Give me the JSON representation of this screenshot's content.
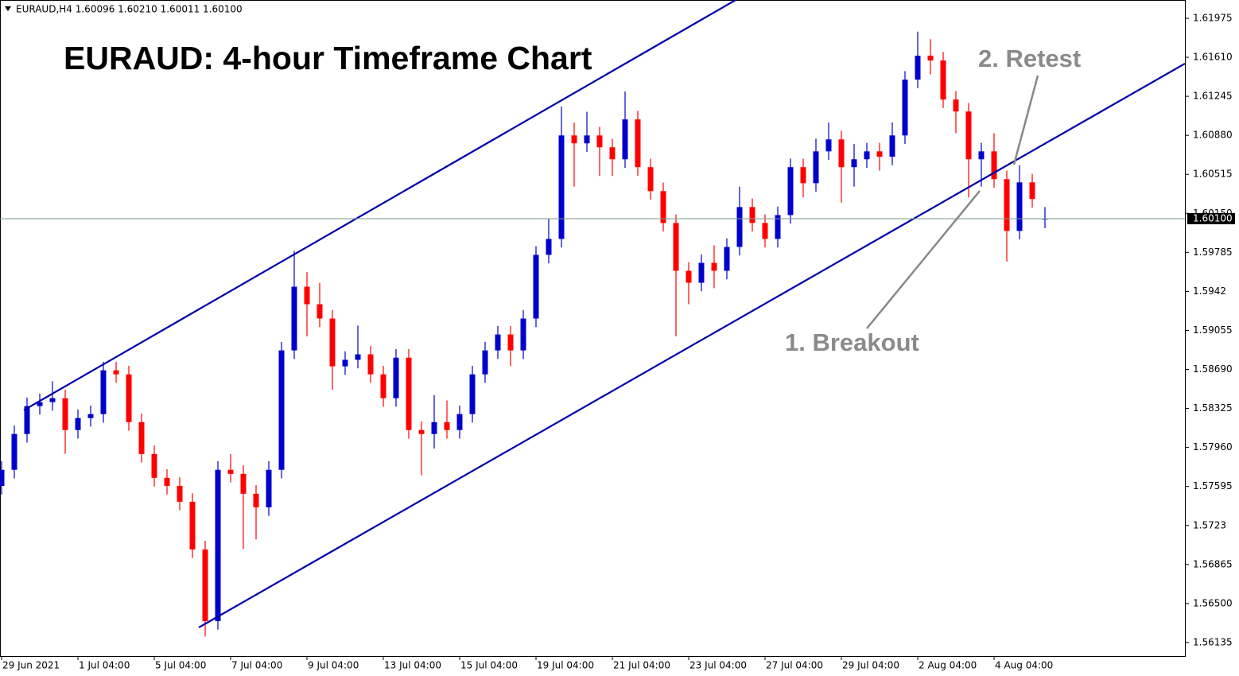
{
  "chart_data": {
    "type": "candlestick",
    "header": "EURAUD,H4  1.60096 1.60210 1.60011 1.60100",
    "title": "EURAUD: 4-hour Timeframe Chart",
    "annotations": [
      "1. Breakout",
      "2. Retest"
    ],
    "up_color": "#0000cc",
    "down_color": "#ff0000",
    "open": [
      1.576,
      1.57751,
      1.58086,
      1.58347,
      1.58384,
      1.58421,
      1.58123,
      1.58235,
      1.58272,
      1.58682,
      1.58644,
      1.58197,
      1.57899,
      1.57676,
      1.57601,
      1.57452,
      1.57006,
      1.56335,
      1.57751,
      1.57713,
      1.57527,
      1.574,
      1.57751,
      1.58868,
      1.59464,
      1.593,
      1.59166,
      1.58719,
      1.5878,
      1.58831,
      1.58644,
      1.58421,
      1.588,
      1.58123,
      1.58086,
      1.58197,
      1.58123,
      1.58272,
      1.58644,
      1.58868,
      1.59017,
      1.58868,
      1.59166,
      1.59762,
      1.59911,
      1.60879,
      1.60805,
      1.60879,
      1.60768,
      1.60656,
      1.61029,
      1.60582,
      1.60358,
      1.6006,
      1.59613,
      1.59501,
      1.59687,
      1.59613,
      1.59836,
      1.60209,
      1.6006,
      1.59911,
      1.60134,
      1.60582,
      1.60432,
      1.6073,
      1.60842,
      1.60582,
      1.60656,
      1.6073,
      1.6068,
      1.60879,
      1.61401,
      1.61625,
      1.6158,
      1.61215,
      1.61103,
      1.60656,
      1.6073,
      1.6047,
      1.59986,
      1.6044,
      1.60096
    ],
    "high": [
      1.57831,
      1.58166,
      1.58427,
      1.58464,
      1.5858,
      1.58501,
      1.58315,
      1.58352,
      1.58762,
      1.58762,
      1.58724,
      1.58277,
      1.57979,
      1.57756,
      1.57681,
      1.57532,
      1.57086,
      1.57831,
      1.579,
      1.57793,
      1.57607,
      1.57831,
      1.58948,
      1.598,
      1.596,
      1.595,
      1.59246,
      1.5886,
      1.591,
      1.58911,
      1.58724,
      1.5888,
      1.5888,
      1.58203,
      1.5845,
      1.584,
      1.58352,
      1.58724,
      1.58948,
      1.59097,
      1.59097,
      1.59246,
      1.59842,
      1.601,
      1.6115,
      1.61,
      1.611,
      1.60959,
      1.60848,
      1.6129,
      1.61109,
      1.60662,
      1.60438,
      1.6014,
      1.59693,
      1.59767,
      1.5985,
      1.59916,
      1.604,
      1.60289,
      1.6014,
      1.60214,
      1.60662,
      1.60662,
      1.6085,
      1.61,
      1.60922,
      1.608,
      1.6081,
      1.6081,
      1.61,
      1.61481,
      1.6185,
      1.6178,
      1.6166,
      1.61295,
      1.61183,
      1.6081,
      1.609,
      1.6055,
      1.606,
      1.6052,
      1.6021
    ],
    "low": [
      1.5752,
      1.57671,
      1.58006,
      1.58267,
      1.58304,
      1.579,
      1.58043,
      1.58155,
      1.58192,
      1.58564,
      1.58117,
      1.57819,
      1.57596,
      1.57521,
      1.57372,
      1.56926,
      1.5619,
      1.56255,
      1.57633,
      1.5701,
      1.571,
      1.5732,
      1.57671,
      1.58788,
      1.59,
      1.59086,
      1.585,
      1.58639,
      1.587,
      1.58564,
      1.58341,
      1.58341,
      1.58043,
      1.577,
      1.5795,
      1.58043,
      1.58043,
      1.58192,
      1.58564,
      1.58788,
      1.5872,
      1.58788,
      1.59086,
      1.59682,
      1.59831,
      1.604,
      1.60725,
      1.605,
      1.605,
      1.60576,
      1.60502,
      1.60278,
      1.5998,
      1.59,
      1.593,
      1.59421,
      1.5945,
      1.59533,
      1.59756,
      1.5998,
      1.59831,
      1.59831,
      1.60054,
      1.603,
      1.60352,
      1.6065,
      1.6025,
      1.604,
      1.60576,
      1.6055,
      1.606,
      1.60799,
      1.61321,
      1.6145,
      1.61135,
      1.609,
      1.603,
      1.604,
      1.6039,
      1.597,
      1.59906,
      1.60204,
      1.60011
    ],
    "close": [
      1.57751,
      1.58086,
      1.58347,
      1.58384,
      1.58421,
      1.58123,
      1.58235,
      1.58272,
      1.58682,
      1.58644,
      1.58197,
      1.57899,
      1.57676,
      1.57601,
      1.57452,
      1.57006,
      1.56335,
      1.57751,
      1.57713,
      1.57527,
      1.574,
      1.57751,
      1.58868,
      1.59464,
      1.593,
      1.59166,
      1.58719,
      1.5878,
      1.58831,
      1.58644,
      1.58421,
      1.588,
      1.58123,
      1.58086,
      1.58197,
      1.58123,
      1.58272,
      1.58644,
      1.58868,
      1.59017,
      1.58868,
      1.59166,
      1.59762,
      1.59911,
      1.60879,
      1.60805,
      1.60879,
      1.60768,
      1.60656,
      1.61029,
      1.60582,
      1.60358,
      1.6006,
      1.59613,
      1.59501,
      1.59687,
      1.59613,
      1.59836,
      1.60209,
      1.6006,
      1.59911,
      1.60134,
      1.60582,
      1.60432,
      1.6073,
      1.60842,
      1.60582,
      1.60656,
      1.6073,
      1.6068,
      1.60879,
      1.61401,
      1.61625,
      1.6158,
      1.61215,
      1.61103,
      1.60656,
      1.6073,
      1.6047,
      1.59986,
      1.6044,
      1.60284,
      1.601
    ],
    "last_price": {
      "value": 1.601,
      "label": "1.60100"
    },
    "last_price_color": "#7a9a8a",
    "trendlines": [
      {
        "color": "#0000aa",
        "x": [
          1.75,
          57.69
        ],
        "y": [
          1.58309,
          1.62146
        ]
      },
      {
        "color": "#0000aa",
        "x": [
          15.5,
          93.0
        ],
        "y": [
          1.56276,
          1.61551
        ]
      }
    ],
    "xlim": [
      -0.125,
      93.0
    ],
    "xticks": [
      {
        "value": 0,
        "label": "29 Jun 2021"
      },
      {
        "value": 6,
        "label": "1 Jul 04:00"
      },
      {
        "value": 12,
        "label": "5 Jul 04:00"
      },
      {
        "value": 18,
        "label": "7 Jul 04:00"
      },
      {
        "value": 24,
        "label": "9 Jul 04:00"
      },
      {
        "value": 30,
        "label": "13 Jul 04:00"
      },
      {
        "value": 36,
        "label": "15 Jul 04:00"
      },
      {
        "value": 42,
        "label": "19 Jul 04:00"
      },
      {
        "value": 48,
        "label": "21 Jul 04:00"
      },
      {
        "value": 54,
        "label": "23 Jul 04:00"
      },
      {
        "value": 60,
        "label": "27 Jul 04:00"
      },
      {
        "value": 66,
        "label": "29 Jul 04:00"
      },
      {
        "value": 72,
        "label": "2 Aug 04:00"
      },
      {
        "value": 78,
        "label": "4 Aug 04:00"
      }
    ],
    "ylim": [
      1.56008,
      1.62146
    ],
    "yticks": [
      1.61975,
      {
        "value": 1.6161,
        "label": "1.61610"
      },
      1.61245,
      {
        "value": 1.6088,
        "label": "1.60880"
      },
      1.60515,
      {
        "value": 1.6015,
        "label": "1.60150"
      },
      1.59785,
      1.5942,
      1.59055,
      {
        "value": 1.5869,
        "label": "1.58690"
      },
      1.58325,
      {
        "value": 1.5796,
        "label": "1.57960"
      },
      1.57595,
      1.5723,
      1.56865,
      {
        "value": 1.565,
        "label": "1.56500"
      },
      1.56135
    ]
  }
}
